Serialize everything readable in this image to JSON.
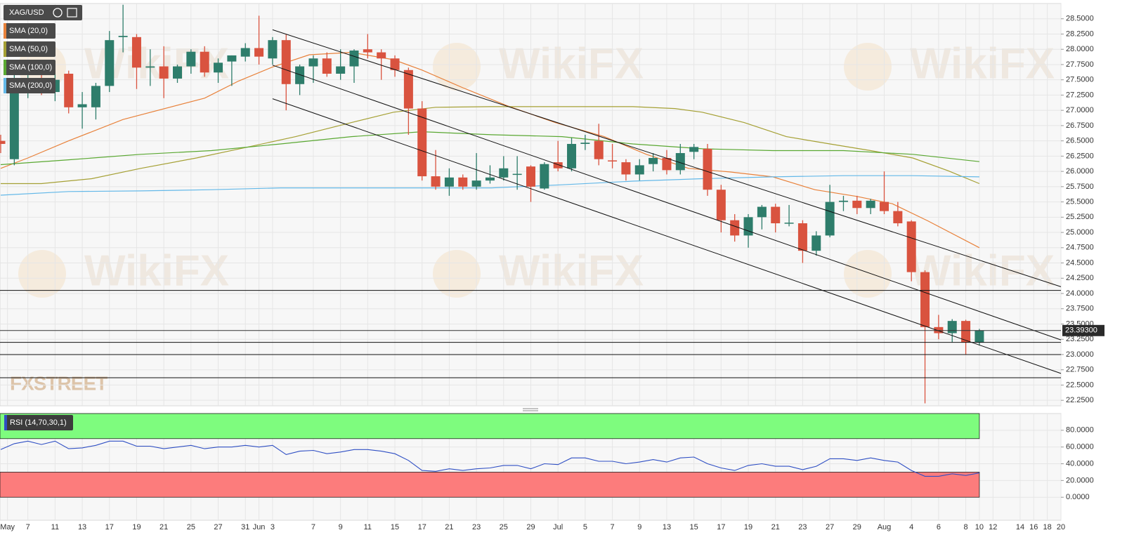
{
  "chart_data": [
    {
      "type": "candlestick",
      "symbol": "XAG/USD",
      "x": [
        0,
        1,
        2,
        3,
        4,
        5,
        6,
        7,
        8,
        9,
        10,
        11,
        12,
        13,
        14,
        15,
        16,
        17,
        18,
        19,
        20,
        21,
        22,
        23,
        24,
        25,
        26,
        27,
        28,
        29,
        30,
        31,
        32,
        33,
        34,
        35,
        36,
        37,
        38,
        39,
        40,
        41,
        42,
        43,
        44,
        45,
        46,
        47,
        48,
        49,
        50,
        51,
        52,
        53,
        54,
        55,
        56,
        57,
        58,
        59,
        60,
        61,
        62,
        63,
        64,
        65,
        66,
        67,
        68,
        69,
        70,
        71,
        72
      ],
      "open": [
        26.5,
        26.2,
        27.4,
        27.5,
        27.3,
        27.6,
        27.05,
        27.05,
        27.4,
        28.2,
        28.2,
        27.7,
        27.72,
        27.52,
        27.72,
        27.96,
        27.62,
        27.8,
        27.88,
        28.02,
        27.85,
        28.15,
        27.43,
        27.72,
        27.85,
        27.6,
        27.72,
        28.0,
        27.95,
        27.85,
        27.66,
        27.03,
        25.92,
        25.75,
        25.9,
        25.75,
        25.85,
        25.9,
        25.95,
        26.08,
        25.72,
        26.15,
        26.05,
        26.45,
        26.5,
        26.18,
        26.15,
        25.95,
        26.12,
        26.22,
        26.02,
        26.32,
        26.37,
        25.7,
        25.2,
        24.95,
        25.25,
        25.42,
        25.15,
        25.15,
        24.7,
        24.95,
        25.5,
        25.52,
        25.4,
        25.5,
        25.35,
        25.18,
        24.35,
        23.45,
        23.35,
        23.55,
        23.2
      ],
      "high": [
        26.6,
        27.6,
        27.6,
        27.65,
        27.6,
        27.65,
        27.3,
        27.45,
        28.3,
        28.73,
        28.25,
        28.0,
        28.05,
        27.75,
        28.0,
        28.05,
        27.85,
        27.9,
        28.1,
        28.55,
        28.2,
        28.25,
        27.75,
        27.9,
        27.95,
        28.0,
        28.0,
        28.25,
        28.0,
        27.9,
        27.7,
        27.15,
        26.35,
        26.05,
        25.95,
        26.3,
        26.1,
        26.25,
        26.25,
        26.1,
        26.15,
        26.5,
        26.55,
        26.6,
        26.78,
        26.45,
        26.2,
        26.2,
        26.3,
        26.35,
        26.45,
        26.45,
        26.45,
        25.78,
        25.3,
        25.3,
        25.45,
        25.47,
        25.45,
        25.2,
        25.02,
        25.78,
        25.6,
        25.6,
        25.55,
        26.0,
        25.5,
        25.2,
        24.38,
        23.65,
        23.58,
        23.57,
        23.42
      ],
      "low": [
        26.3,
        26.1,
        27.2,
        27.25,
        27.15,
        26.95,
        26.7,
        26.85,
        27.3,
        27.95,
        27.35,
        27.4,
        27.2,
        27.45,
        27.6,
        27.55,
        27.45,
        27.4,
        27.8,
        27.75,
        27.75,
        27.0,
        27.25,
        27.45,
        27.55,
        27.5,
        27.45,
        27.85,
        27.5,
        27.55,
        26.6,
        25.85,
        25.7,
        25.6,
        25.7,
        25.7,
        25.8,
        25.85,
        25.7,
        25.5,
        25.7,
        26.0,
        26.0,
        26.35,
        26.1,
        26.05,
        25.85,
        25.85,
        26.0,
        25.95,
        25.95,
        26.2,
        25.6,
        25.0,
        24.85,
        24.75,
        25.05,
        25.0,
        25.1,
        24.5,
        24.62,
        24.92,
        25.35,
        25.3,
        25.3,
        25.3,
        25.1,
        24.2,
        22.2,
        23.25,
        23.2,
        23.0,
        23.15
      ],
      "close": [
        26.45,
        27.4,
        27.5,
        27.35,
        27.5,
        27.05,
        27.1,
        27.4,
        28.15,
        28.22,
        27.7,
        27.72,
        27.52,
        27.72,
        27.96,
        27.62,
        27.78,
        27.9,
        28.02,
        27.88,
        28.15,
        27.43,
        27.72,
        27.85,
        27.6,
        27.72,
        27.98,
        27.95,
        27.85,
        27.66,
        27.03,
        25.92,
        25.75,
        25.9,
        25.75,
        25.85,
        25.9,
        26.05,
        25.96,
        25.75,
        26.12,
        26.05,
        26.45,
        26.47,
        26.2,
        26.17,
        25.95,
        26.1,
        26.22,
        26.02,
        26.3,
        26.4,
        25.7,
        25.2,
        24.95,
        25.25,
        25.42,
        25.15,
        25.16,
        24.7,
        24.95,
        25.5,
        25.52,
        25.4,
        25.52,
        25.35,
        25.15,
        24.35,
        23.45,
        23.35,
        23.55,
        23.2,
        23.393
      ],
      "up_color": "#2e7d6b",
      "down_color": "#d9533f",
      "xlim": [
        0,
        78
      ],
      "xticks": [
        {
          "value": 0.5,
          "label": "May"
        },
        {
          "value": 2,
          "label": "7"
        },
        {
          "value": 4,
          "label": "11"
        },
        {
          "value": 6,
          "label": "13"
        },
        {
          "value": 8,
          "label": "17"
        },
        {
          "value": 10,
          "label": "19"
        },
        {
          "value": 12,
          "label": "21"
        },
        {
          "value": 14,
          "label": "25"
        },
        {
          "value": 16,
          "label": "27"
        },
        {
          "value": 18,
          "label": "31"
        },
        {
          "value": 19,
          "label": "Jun"
        },
        {
          "value": 20,
          "label": "3"
        },
        {
          "value": 23,
          "label": "7"
        },
        {
          "value": 25,
          "label": "9"
        },
        {
          "value": 27,
          "label": "11"
        },
        {
          "value": 29,
          "label": "15"
        },
        {
          "value": 31,
          "label": "17"
        },
        {
          "value": 33,
          "label": "21"
        },
        {
          "value": 35,
          "label": "23"
        },
        {
          "value": 37,
          "label": "25"
        },
        {
          "value": 39,
          "label": "29"
        },
        {
          "value": 41,
          "label": "Jul"
        },
        {
          "value": 43,
          "label": "5"
        },
        {
          "value": 45,
          "label": "7"
        },
        {
          "value": 47,
          "label": "9"
        },
        {
          "value": 49,
          "label": "13"
        },
        {
          "value": 51,
          "label": "15"
        },
        {
          "value": 53,
          "label": "17"
        },
        {
          "value": 55,
          "label": "19"
        },
        {
          "value": 57,
          "label": "21"
        },
        {
          "value": 59,
          "label": "23"
        },
        {
          "value": 61,
          "label": "27"
        },
        {
          "value": 63,
          "label": "29"
        },
        {
          "value": 65,
          "label": "Aug"
        },
        {
          "value": 67,
          "label": "4"
        },
        {
          "value": 69,
          "label": "6"
        },
        {
          "value": 71,
          "label": "8"
        },
        {
          "value": 72,
          "label": "10"
        },
        {
          "value": 73,
          "label": "12"
        },
        {
          "value": 75,
          "label": "14"
        },
        {
          "value": 76,
          "label": "16"
        },
        {
          "value": 77,
          "label": "18"
        },
        {
          "value": 78,
          "label": "20"
        }
      ],
      "ylim": [
        22.16,
        28.75
      ],
      "yticks": [
        {
          "value": 28.5,
          "label": "28.5000"
        },
        {
          "value": 28.25,
          "label": "28.2500"
        },
        {
          "value": 28,
          "label": "28.0000"
        },
        {
          "value": 27.75,
          "label": "27.7500"
        },
        {
          "value": 27.5,
          "label": "27.5000"
        },
        {
          "value": 27.25,
          "label": "27.2500"
        },
        {
          "value": 27,
          "label": "27.0000"
        },
        {
          "value": 26.75,
          "label": "26.7500"
        },
        {
          "value": 26.5,
          "label": "26.5000"
        },
        {
          "value": 26.25,
          "label": "26.2500"
        },
        {
          "value": 26,
          "label": "26.0000"
        },
        {
          "value": 25.75,
          "label": "25.7500"
        },
        {
          "value": 25.5,
          "label": "25.5000"
        },
        {
          "value": 25.25,
          "label": "25.2500"
        },
        {
          "value": 25,
          "label": "25.0000"
        },
        {
          "value": 24.75,
          "label": "24.7500"
        },
        {
          "value": 24.5,
          "label": "24.5000"
        },
        {
          "value": 24.25,
          "label": "24.2500"
        },
        {
          "value": 24,
          "label": "24.0000"
        },
        {
          "value": 23.75,
          "label": "23.7500"
        },
        {
          "value": 23.5,
          "label": "23.5000"
        },
        {
          "value": 23.25,
          "label": "23.2500"
        },
        {
          "value": 23,
          "label": "23.0000"
        },
        {
          "value": 22.75,
          "label": "22.7500"
        },
        {
          "value": 22.5,
          "label": "22.5000"
        },
        {
          "value": 22.25,
          "label": "22.2500"
        }
      ],
      "grid": true,
      "last_price": {
        "value": 23.393,
        "label": "23.39300"
      },
      "overlays": [
        {
          "name": "SMA (20,0)",
          "color": "#e8813a",
          "x": [
            0,
            2,
            5,
            9,
            15,
            17.5,
            20,
            22.7,
            25.8,
            28.9,
            31,
            34,
            37.2,
            40.8,
            44.4,
            47.5,
            50.6,
            53.7,
            56.8,
            59.9,
            63,
            65.6,
            68.2,
            72
          ],
          "values": [
            26.05,
            26.22,
            26.5,
            26.85,
            27.2,
            27.48,
            27.71,
            27.91,
            27.95,
            27.83,
            27.66,
            27.37,
            27.08,
            26.8,
            26.57,
            26.28,
            26.05,
            25.99,
            25.91,
            25.7,
            25.59,
            25.47,
            25.19,
            24.75
          ]
        },
        {
          "name": "SMA (50,0)",
          "color": "#a5a034",
          "x": [
            0,
            3,
            6.7,
            10.3,
            14.4,
            18,
            21.7,
            25.8,
            28.9,
            32,
            36.1,
            41.3,
            46.5,
            49.6,
            51.6,
            54.7,
            57.8,
            61,
            64,
            67.1,
            69.7,
            72
          ],
          "values": [
            25.8,
            25.8,
            25.88,
            26.05,
            26.22,
            26.39,
            26.57,
            26.8,
            26.97,
            27.05,
            27.06,
            27.06,
            27.06,
            27.03,
            26.97,
            26.8,
            26.57,
            26.45,
            26.34,
            26.22,
            26.01,
            25.8
          ]
        },
        {
          "name": "SMA (100,0)",
          "color": "#5aa832",
          "x": [
            0,
            5,
            10.3,
            15.5,
            20.6,
            25.8,
            31,
            36.1,
            41.3,
            46.5,
            51.6,
            56.8,
            62,
            67.1,
            72
          ],
          "values": [
            26.11,
            26.19,
            26.28,
            26.34,
            26.45,
            26.57,
            26.65,
            26.6,
            26.57,
            26.45,
            26.37,
            26.34,
            26.34,
            26.28,
            26.16
          ]
        },
        {
          "name": "SMA (200,0)",
          "color": "#63b8e8",
          "x": [
            0,
            5,
            10.3,
            15.5,
            20.6,
            25.8,
            31,
            36.1,
            41.3,
            46.5,
            51.6,
            56.8,
            62,
            67.1,
            72
          ],
          "values": [
            25.61,
            25.67,
            25.68,
            25.7,
            25.73,
            25.73,
            25.73,
            25.73,
            25.78,
            25.84,
            25.88,
            25.91,
            25.93,
            25.93,
            25.91
          ]
        }
      ],
      "trendlines": [
        {
          "x": [
            20,
            78
          ],
          "values": [
            28.32,
            24.11
          ]
        },
        {
          "x": [
            20,
            78
          ],
          "values": [
            27.74,
            23.24
          ]
        },
        {
          "x": [
            20,
            78
          ],
          "values": [
            27.19,
            22.69
          ]
        }
      ],
      "levels": [
        24.05,
        23.2,
        23.0,
        22.62
      ]
    },
    {
      "type": "line",
      "series": [
        {
          "name": "RSI (14,70,30,1)",
          "color": "#2f4fc4",
          "x": [
            0,
            1,
            2,
            3,
            4,
            5,
            6,
            7,
            8,
            9,
            10,
            11,
            12,
            13,
            14,
            15,
            16,
            17,
            18,
            19,
            20,
            21,
            22,
            23,
            24,
            25,
            26,
            27,
            28,
            29,
            30,
            31,
            32,
            33,
            34,
            35,
            36,
            37,
            38,
            39,
            40,
            41,
            42,
            43,
            44,
            45,
            46,
            47,
            48,
            49,
            50,
            51,
            52,
            53,
            54,
            55,
            56,
            57,
            58,
            59,
            60,
            61,
            62,
            63,
            64,
            65,
            66,
            67,
            68,
            69,
            70,
            71,
            72
          ],
          "values": [
            57,
            64,
            67,
            63,
            67,
            58,
            59,
            62,
            67,
            67,
            61,
            61,
            58,
            60,
            62,
            58,
            60,
            60,
            62,
            60,
            62,
            51,
            55,
            56,
            52,
            54,
            57,
            57,
            55,
            52,
            44,
            32,
            31,
            34,
            32,
            34,
            35,
            38,
            38,
            34,
            40,
            39,
            47,
            47,
            43,
            43,
            40,
            42,
            45,
            42,
            47,
            48,
            40,
            35,
            32,
            38,
            40,
            37,
            37,
            33,
            37,
            46,
            46,
            44,
            47,
            44,
            42,
            32,
            25,
            25,
            28,
            26,
            29
          ]
        }
      ],
      "xlim": [
        0,
        78
      ],
      "ylim": [
        -27.5,
        100
      ],
      "yticks": [
        {
          "value": 80,
          "label": "80.0000"
        },
        {
          "value": 60,
          "label": "60.0000"
        },
        {
          "value": 40,
          "label": "40.0000"
        },
        {
          "value": 20,
          "label": "20.0000"
        },
        {
          "value": 0,
          "label": "0.0000"
        }
      ],
      "bands": [
        {
          "from": 70,
          "to": 100,
          "color": "#7efc7e"
        },
        {
          "from": 0,
          "to": 30,
          "color": "#fc7c7c"
        }
      ],
      "grid": true
    }
  ],
  "watermark": "WikiFX",
  "brand": "FXSTREET"
}
